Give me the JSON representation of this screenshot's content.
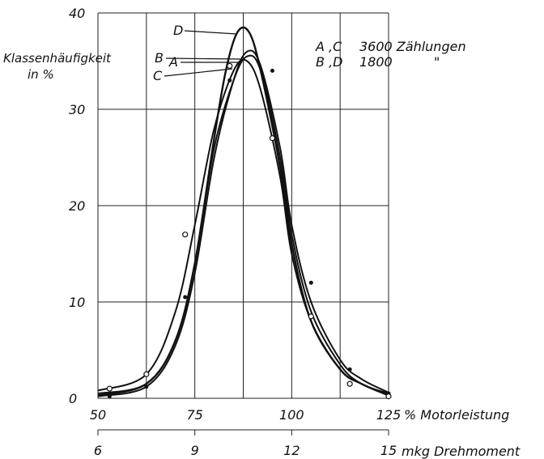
{
  "chart_data": {
    "type": "line",
    "title": "",
    "ylabel": "Klassenhäufigkeit in %",
    "ylabel_line1": "Klassenhäufigkeit",
    "ylabel_line2": "in %",
    "xlabel": "% Motorleistung",
    "x2label": "mkg Drehmoment",
    "xlim": [
      50,
      125
    ],
    "ylim": [
      0,
      40
    ],
    "grid": true,
    "x_ticks": [
      50,
      75,
      100,
      125
    ],
    "x_minor_gridlines": [
      62.5,
      87.5,
      112.5
    ],
    "y_ticks": [
      0,
      10,
      20,
      30,
      40
    ],
    "x2_ticks": [
      "6",
      "9",
      "12",
      "15"
    ],
    "legend": [
      {
        "series": "A ,C",
        "text": "3600 Zählungen"
      },
      {
        "series": "B ,D",
        "text": "1800",
        "ditto": "\""
      }
    ],
    "series": [
      {
        "name": "A",
        "x": [
          50,
          62.5,
          70,
          75,
          80,
          85,
          88.5,
          92,
          97,
          100,
          105,
          112.5,
          118,
          125
        ],
        "y": [
          0.5,
          1.5,
          6,
          14,
          26,
          33,
          35.5,
          34,
          25,
          17,
          9,
          3.5,
          1.5,
          0.5
        ]
      },
      {
        "name": "B",
        "x": [
          50,
          62.5,
          70,
          75,
          80,
          85,
          88.5,
          92,
          97,
          100,
          105,
          112.5,
          118,
          125
        ],
        "y": [
          0.2,
          1.2,
          5.5,
          13,
          25,
          33,
          36,
          34.5,
          26,
          18,
          10,
          4,
          2,
          0.6
        ]
      },
      {
        "name": "C",
        "x": [
          50,
          62.5,
          70,
          75,
          80,
          85,
          88.5,
          92,
          97,
          100,
          105,
          112.5,
          118,
          125
        ],
        "y": [
          0.8,
          2.5,
          9,
          18,
          28,
          34,
          35,
          32,
          23,
          15,
          8,
          3,
          1.5,
          0.4
        ]
      },
      {
        "name": "D",
        "x": [
          50,
          62.5,
          70,
          75,
          80,
          83,
          86,
          89,
          92,
          97,
          100,
          105,
          112.5,
          118,
          125
        ],
        "y": [
          0.3,
          1.5,
          6,
          14,
          27,
          34,
          38,
          38,
          34,
          24,
          16,
          8,
          3,
          1.5,
          0.3
        ]
      }
    ],
    "markers": [
      {
        "series": "A",
        "shape": "dot",
        "x": [
          53,
          62.5,
          72.5,
          84,
          95,
          105,
          115,
          125
        ],
        "y": [
          0.2,
          1.2,
          10.5,
          33,
          34,
          12,
          3,
          0.5
        ]
      },
      {
        "series": "C",
        "shape": "circle",
        "x": [
          53,
          62.5,
          72.5,
          84,
          95,
          105,
          115,
          125
        ],
        "y": [
          1,
          2.5,
          17,
          34.5,
          27,
          8.5,
          1.5,
          0.2
        ]
      }
    ]
  }
}
